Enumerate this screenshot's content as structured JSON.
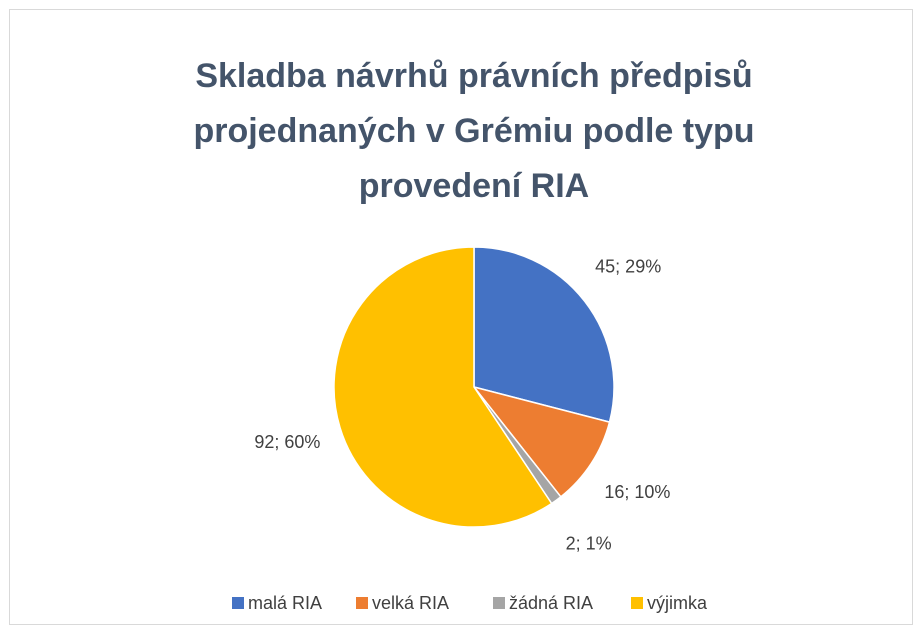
{
  "chart_data": {
    "type": "pie",
    "title": [
      "Skladba návrhů právních předpisů",
      "projednaných v Grémiu podle typu",
      "provedení RIA"
    ],
    "categories": [
      "malá RIA",
      "velká RIA",
      "žádná RIA",
      "výjimka"
    ],
    "values": [
      45,
      16,
      2,
      92
    ],
    "value_labels": [
      "45; 29%",
      "16; 10%",
      "2; 1%",
      "92; 60%"
    ],
    "colors": [
      "#4472c4",
      "#ed7d31",
      "#a5a5a5",
      "#ffc000"
    ],
    "legend": "bottom"
  }
}
